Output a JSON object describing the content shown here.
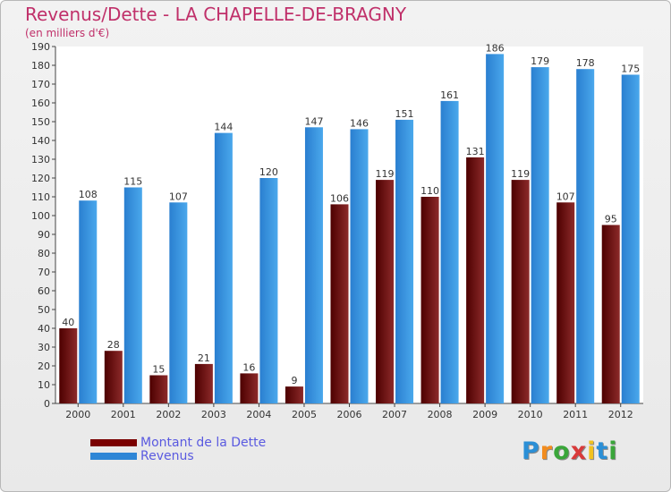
{
  "title": "Revenus/Dette - LA CHAPELLE-DE-BRAGNY",
  "subtitle": "(en milliers d'€)",
  "logo_text": "Proxiti",
  "colors": {
    "debt": "#7a0000",
    "revenue": "#2e86d6",
    "title": "#c0306a",
    "legend_text": "#5a5ae0"
  },
  "chart_data": {
    "type": "bar",
    "categories": [
      "2000",
      "2001",
      "2002",
      "2003",
      "2004",
      "2005",
      "2006",
      "2007",
      "2008",
      "2009",
      "2010",
      "2011",
      "2012"
    ],
    "series": [
      {
        "name": "Montant de la Dette",
        "values": [
          40,
          28,
          15,
          21,
          16,
          9,
          106,
          119,
          110,
          131,
          119,
          107,
          95
        ]
      },
      {
        "name": "Revenus",
        "values": [
          108,
          115,
          107,
          144,
          120,
          147,
          146,
          151,
          161,
          186,
          179,
          178,
          175
        ]
      }
    ],
    "ylim": [
      0,
      190
    ],
    "yticks": [
      0,
      10,
      20,
      30,
      40,
      50,
      60,
      70,
      80,
      90,
      100,
      110,
      120,
      130,
      140,
      150,
      160,
      170,
      180,
      190
    ],
    "grid": false,
    "legend": "bottom-left"
  }
}
